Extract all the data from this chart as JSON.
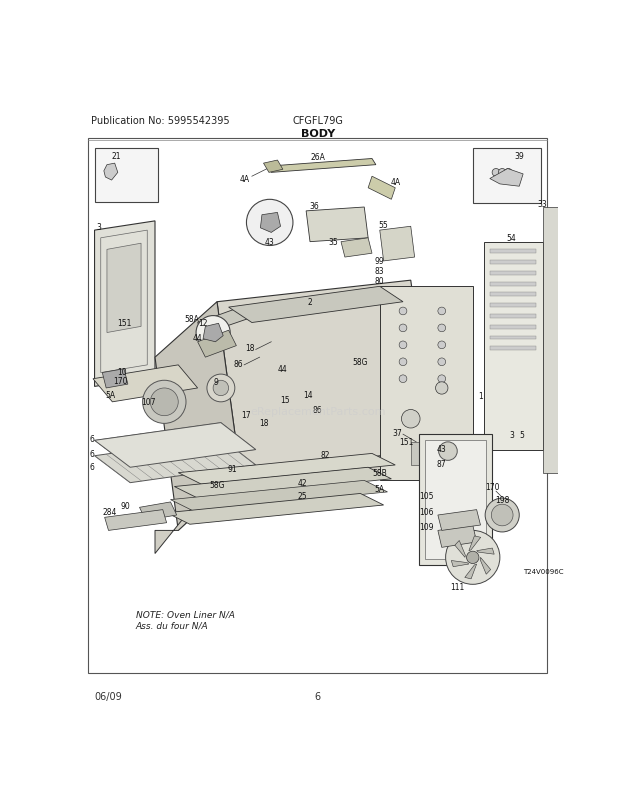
{
  "pub_no": "Publication No: 5995542395",
  "model": "CFGFL79G",
  "section": "BODY",
  "date": "06/09",
  "page": "6",
  "watermark": "eReplacementParts.com",
  "bg_color": "#ffffff",
  "border_color": "#000000",
  "fig_width": 6.2,
  "fig_height": 8.03,
  "dpi": 100,
  "header_font_size": 7,
  "title_font_size": 8,
  "footer_font_size": 7,
  "label_font_size": 5.5,
  "note_line1": "NOTE: Oven Liner N/A",
  "note_line2": "Ass. du four N/A",
  "line_color": "#333333",
  "fill_light": "#e8e8e0",
  "fill_mid": "#d0cec4",
  "fill_dark": "#b8b6aa"
}
